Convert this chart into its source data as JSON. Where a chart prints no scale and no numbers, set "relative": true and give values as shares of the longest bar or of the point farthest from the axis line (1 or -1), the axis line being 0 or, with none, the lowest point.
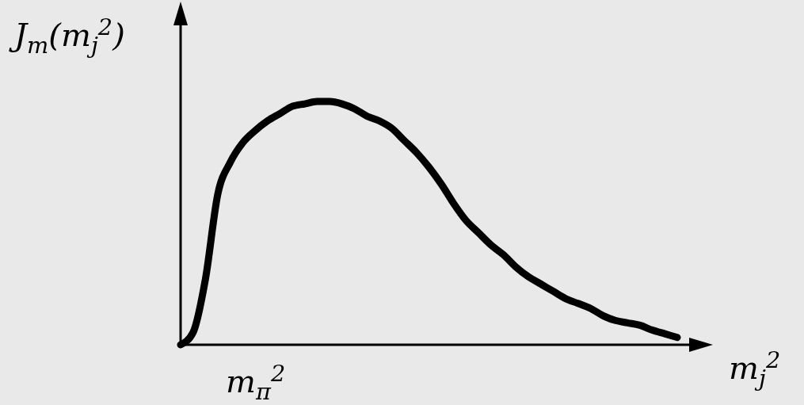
{
  "chart_data": {
    "type": "line",
    "relative": true,
    "xlabel": "m$_{j}$$^{2}$",
    "ylabel": "J$_{m}$(m$_{j}$$^{2}$)",
    "annotations": [
      "m$_{π}$$^{2}$"
    ],
    "categories": [
      null,
      null,
      null,
      null,
      null,
      null,
      null,
      null,
      null,
      null,
      null,
      null,
      null,
      null,
      null,
      null,
      null,
      null,
      null,
      null,
      null,
      null,
      null,
      null,
      null,
      null,
      null,
      null,
      null,
      null,
      null,
      null,
      null,
      null,
      null,
      null,
      null,
      null,
      null,
      null,
      null
    ],
    "series": [
      {
        "color": "#000000",
        "values": [
          0,
          0.05,
          0.27,
          0.62,
          0.75,
          0.83,
          0.88,
          0.92,
          0.95,
          0.98,
          0.99,
          1,
          1,
          0.99,
          0.97,
          0.94,
          0.92,
          0.89,
          0.84,
          0.79,
          0.73,
          0.66,
          0.58,
          0.51,
          0.46,
          0.41,
          0.37,
          0.32,
          0.28,
          0.25,
          0.22,
          0.19,
          0.17,
          0.15,
          0.12,
          0.1,
          0.09,
          0.08,
          0.06,
          0.045,
          0.03
        ]
      }
    ]
  }
}
